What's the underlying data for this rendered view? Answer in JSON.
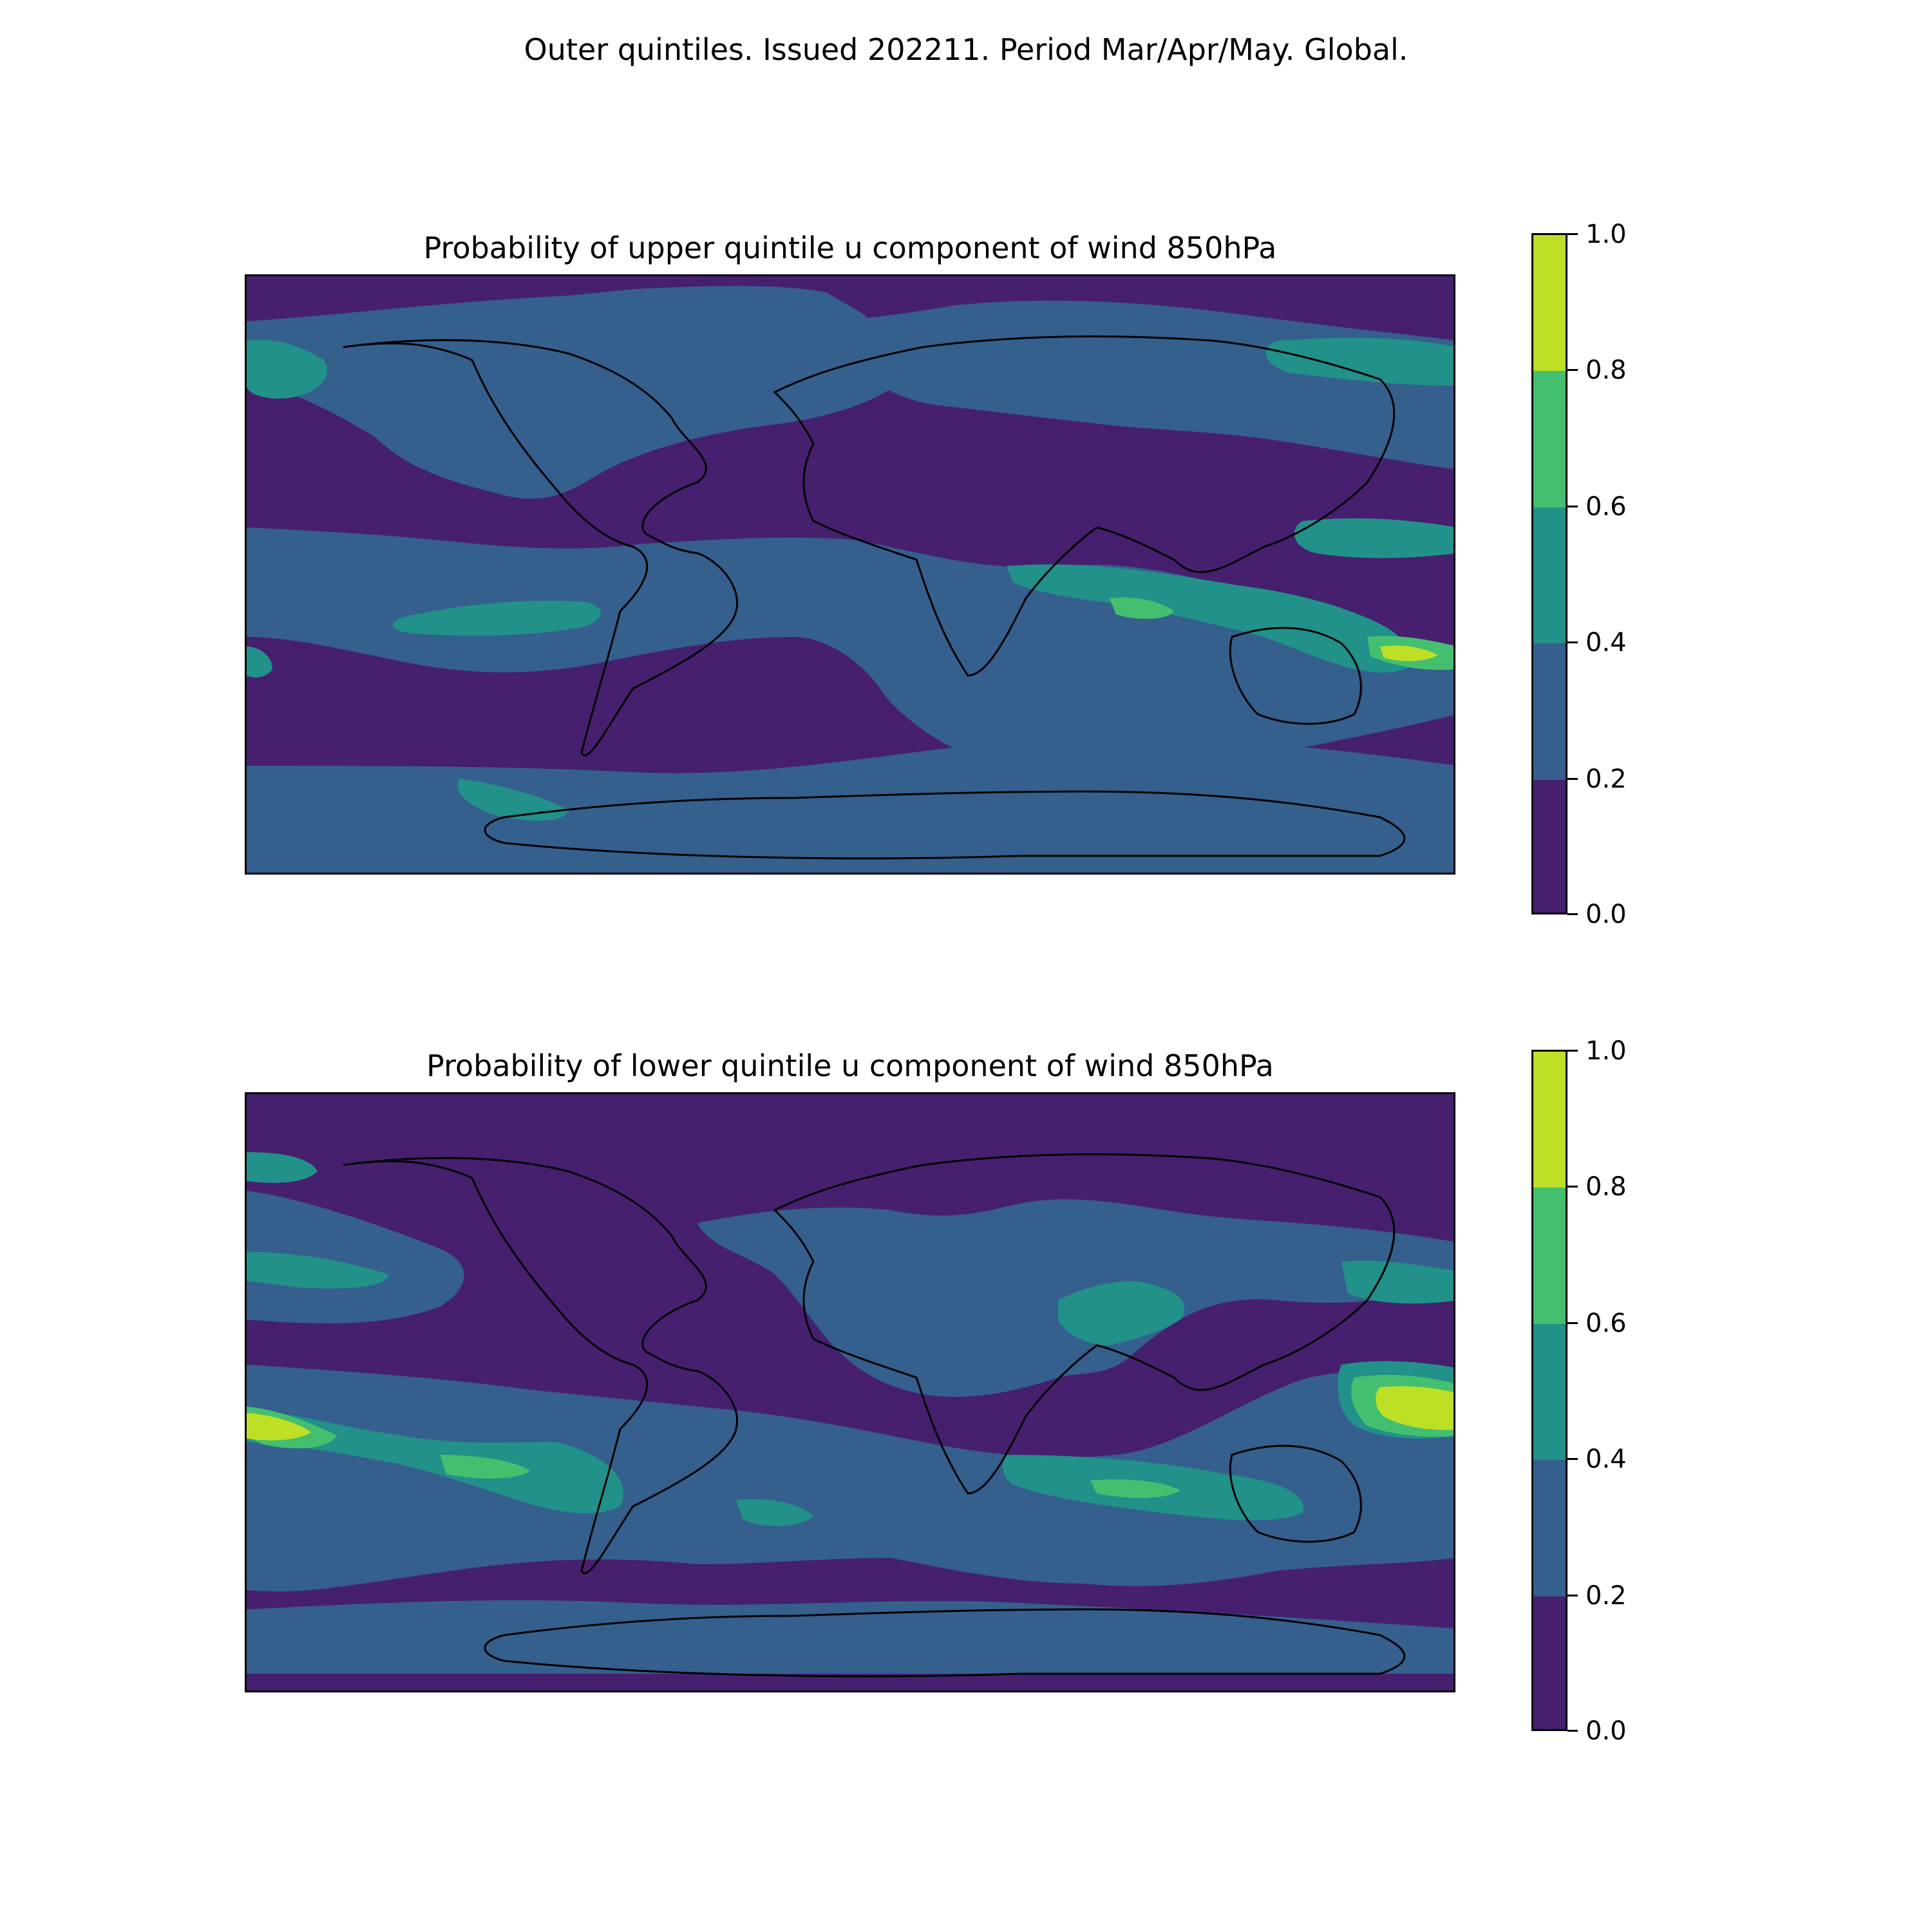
{
  "figure": {
    "suptitle": "Outer quintiles. Issued 202211. Period Mar/Apr/May. Global."
  },
  "colorbar": {
    "levels": [
      "0.0",
      "0.2",
      "0.4",
      "0.6",
      "0.8",
      "1.0"
    ],
    "colors": [
      "#440154",
      "#3b528b",
      "#21918c",
      "#5ec962",
      "#fde725"
    ],
    "bin_colors_rendered": [
      "#46206f",
      "#355f8d",
      "#219189",
      "#44bf70",
      "#bddf26"
    ]
  },
  "maps": [
    {
      "title": "Probability of upper quintile u component of wind 850hPa",
      "projection": "plate-carree",
      "extent_lon": [
        -180,
        180
      ],
      "extent_lat": [
        -90,
        90
      ],
      "colorbar_range": [
        0.0,
        1.0
      ]
    },
    {
      "title": "Probability of lower quintile u component of wind 850hPa",
      "projection": "plate-carree",
      "extent_lon": [
        -180,
        180
      ],
      "extent_lat": [
        -90,
        90
      ],
      "colorbar_range": [
        0.0,
        1.0
      ]
    }
  ]
}
